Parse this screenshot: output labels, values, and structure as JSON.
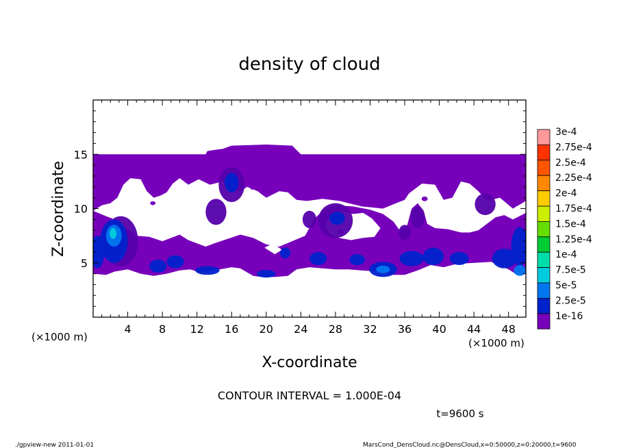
{
  "chart_data": {
    "type": "heatmap",
    "title": "density of cloud",
    "xlabel": "X-coordinate",
    "ylabel": "Z-coordinate",
    "x_unit": "(×1000 m)",
    "y_unit": "(×1000 m)",
    "xlim": [
      0,
      50
    ],
    "ylim": [
      0,
      20
    ],
    "x_ticks": [
      4,
      8,
      12,
      16,
      20,
      24,
      28,
      32,
      36,
      40,
      44,
      48
    ],
    "y_ticks": [
      5,
      10,
      15
    ],
    "contour_interval_text": "CONTOUR INTERVAL = 1.000E-04",
    "time_text": "t=9600 s",
    "footer_left": "./gpview-new   2011-01-01",
    "footer_right": "MarsCond_DensCloud.nc@DensCloud,x=0:50000,z=0:20000,t=9600",
    "legend": {
      "levels": [
        "3e-4",
        "2.75e-4",
        "2.5e-4",
        "2.25e-4",
        "2e-4",
        "1.75e-4",
        "1.5e-4",
        "1.25e-4",
        "1e-4",
        "7.5e-5",
        "5e-5",
        "2.5e-5",
        "1e-16"
      ],
      "colors": [
        "#ff9999",
        "#ff3300",
        "#ff5500",
        "#ff8800",
        "#ffcc00",
        "#ccee00",
        "#66dd00",
        "#00cc33",
        "#00ddaa",
        "#00ccdd",
        "#0077ee",
        "#0022cc",
        "#7700bb"
      ]
    },
    "cloud_color": "#7700bb",
    "dense_color_1": "#5500aa",
    "dense_color_2": "#0022cc",
    "dense_color_3": "#0077ee",
    "dense_color_4": "#00ccdd"
  }
}
